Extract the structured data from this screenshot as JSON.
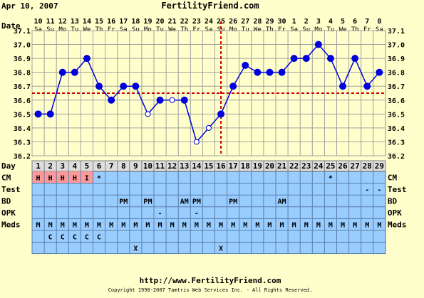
{
  "header": {
    "date": "Apr 10, 2007",
    "site": "FertilityFriend.com"
  },
  "footer": {
    "url": "http://www.FertilityFriend.com",
    "copyright": "Copyright 1998-2007 Tamtris Web Services Inc. - All Rights Reserved."
  },
  "colors": {
    "background": "#ffffcc",
    "plot_bg": "#ffffcc",
    "grid": "#a0a0a0",
    "line": "#0000dd",
    "marker": "#0000dd",
    "coverline": "#cc0000",
    "ovulation_line": "#cc0000",
    "table_bg": "#99ccff",
    "day_row_bg": "#dddddd",
    "cm_highlight": "#ff9999",
    "axis_text": "#000000"
  },
  "row_labels": [
    "Date",
    "Day",
    "CM",
    "Test",
    "BD",
    "OPK",
    "Meds"
  ],
  "chart_data": {
    "type": "line",
    "title": "",
    "xlabel": "",
    "ylabel": "",
    "ylim": [
      36.2,
      37.1
    ],
    "y_ticks": [
      "37.1",
      "37.0",
      "36.9",
      "36.8",
      "36.7",
      "36.6",
      "36.5",
      "36.4",
      "36.3",
      "36.2"
    ],
    "cycle_days": [
      1,
      2,
      3,
      4,
      5,
      6,
      7,
      8,
      9,
      10,
      11,
      12,
      13,
      14,
      15,
      16,
      17,
      18,
      19,
      20,
      21,
      22,
      23,
      24,
      25,
      26,
      27,
      28,
      29
    ],
    "date_top": [
      "10",
      "11",
      "12",
      "13",
      "14",
      "15",
      "16",
      "17",
      "18",
      "19",
      "20",
      "21",
      "22",
      "23",
      "24",
      "25",
      "26",
      "27",
      "28",
      "29",
      "30",
      "1",
      "2",
      "3",
      "4",
      "5",
      "6",
      "7",
      "8"
    ],
    "date_bottom": [
      "Sa",
      "Su",
      "Mo",
      "Tu",
      "We",
      "Th",
      "Fr",
      "Sa",
      "Su",
      "Mo",
      "Tu",
      "We",
      "Th",
      "Fr",
      "Sa",
      "Su",
      "Mo",
      "Tu",
      "We",
      "Th",
      "Fr",
      "Sa",
      "Su",
      "Mo",
      "Tu",
      "We",
      "Th",
      "Fr",
      "Sa"
    ],
    "temps": [
      36.5,
      36.5,
      36.8,
      36.8,
      36.9,
      36.7,
      36.6,
      36.7,
      36.7,
      36.5,
      36.6,
      36.6,
      36.6,
      36.3,
      36.4,
      36.5,
      36.7,
      36.85,
      36.8,
      36.8,
      36.8,
      36.9,
      36.9,
      37.0,
      36.9,
      36.7,
      36.9,
      36.7,
      36.8
    ],
    "open_points": [
      10,
      12,
      14,
      15
    ],
    "coverline": 36.65,
    "ovulation_day": 16,
    "grid": true,
    "cm": [
      "H",
      "H",
      "H",
      "H",
      "I",
      "*",
      "",
      "",
      "",
      "",
      "",
      "",
      "",
      "",
      "",
      "",
      "",
      "",
      "",
      "",
      "",
      "",
      "",
      "",
      "*",
      "",
      "",
      "",
      ""
    ],
    "cm_highlight_days": [
      1,
      2,
      3,
      4,
      5
    ],
    "test": [
      "",
      "",
      "",
      "",
      "",
      "",
      "",
      "",
      "",
      "",
      "",
      "",
      "",
      "",
      "",
      "",
      "",
      "",
      "",
      "",
      "",
      "",
      "",
      "",
      "",
      "",
      "",
      "-",
      "-"
    ],
    "bd": [
      "",
      "",
      "",
      "",
      "",
      "",
      "",
      "PM",
      "",
      "PM",
      "",
      "",
      "AM",
      "PM",
      "",
      "",
      "PM",
      "",
      "",
      "",
      "AM",
      "",
      "",
      "",
      "",
      "",
      "",
      "",
      ""
    ],
    "opk": [
      "",
      "",
      "",
      "",
      "",
      "",
      "",
      "",
      "",
      "",
      "-",
      "",
      "",
      "-",
      "",
      "",
      "",
      "",
      "",
      "",
      "",
      "",
      "",
      "",
      "",
      "",
      "",
      "",
      ""
    ],
    "meds1": [
      "M",
      "M",
      "M",
      "M",
      "M",
      "M",
      "M",
      "M",
      "M",
      "M",
      "M",
      "M",
      "M",
      "M",
      "M",
      "M",
      "M",
      "M",
      "M",
      "M",
      "M",
      "M",
      "M",
      "M",
      "M",
      "M",
      "M",
      "M",
      "M"
    ],
    "meds2": [
      "",
      "C",
      "C",
      "C",
      "C",
      "C",
      "",
      "",
      "",
      "",
      "",
      "",
      "",
      "",
      "",
      "",
      "",
      "",
      "",
      "",
      "",
      "",
      "",
      "",
      "",
      "",
      "",
      "",
      ""
    ],
    "meds3": [
      "",
      "",
      "",
      "",
      "",
      "",
      "",
      "",
      "X",
      "",
      "",
      "",
      "",
      "",
      "",
      "X",
      "",
      "",
      "",
      "",
      "",
      "",
      "",
      "",
      "",
      "",
      "",
      "",
      ""
    ]
  }
}
